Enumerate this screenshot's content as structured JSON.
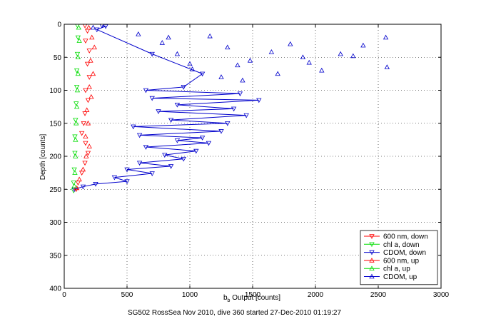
{
  "figure": {
    "caption": "SG502 RossSea Nov 2010, dive 360 started 27-Dec-2010 01:19:27"
  },
  "chart_data": {
    "type": "scatter",
    "xlabel_main": "b",
    "xlabel_sub": "b",
    "xlabel_rest": " Output [counts]",
    "ylabel": "Depth [counts]",
    "xlim": [
      0,
      3000
    ],
    "ylim": [
      0,
      400
    ],
    "y_reversed": true,
    "grid": true,
    "legend_position": "bottom-right",
    "xticks": [
      0,
      500,
      1000,
      1500,
      2000,
      2500,
      3000
    ],
    "yticks": [
      0,
      50,
      100,
      150,
      200,
      250,
      300,
      350,
      400
    ],
    "series": [
      {
        "name": "600 nm, down",
        "color": "#ff0000",
        "marker": "triangle-down",
        "line": false,
        "points": [
          [
            165,
            2
          ],
          [
            185,
            10
          ],
          [
            170,
            25
          ],
          [
            200,
            40
          ],
          [
            185,
            60
          ],
          [
            200,
            80
          ],
          [
            170,
            100
          ],
          [
            190,
            115
          ],
          [
            165,
            135
          ],
          [
            155,
            150
          ],
          [
            140,
            165
          ],
          [
            170,
            180
          ],
          [
            190,
            195
          ],
          [
            165,
            210
          ],
          [
            140,
            225
          ],
          [
            110,
            240
          ],
          [
            95,
            250
          ]
        ]
      },
      {
        "name": "chl a, down",
        "color": "#00dd00",
        "marker": "triangle-down",
        "line": false,
        "points": [
          [
            105,
            2
          ],
          [
            110,
            20
          ],
          [
            105,
            45
          ],
          [
            100,
            70
          ],
          [
            100,
            95
          ],
          [
            95,
            120
          ],
          [
            90,
            145
          ],
          [
            85,
            170
          ],
          [
            85,
            195
          ],
          [
            80,
            220
          ],
          [
            75,
            240
          ],
          [
            75,
            252
          ]
        ]
      },
      {
        "name": "CDOM, down",
        "color": "#0000cc",
        "marker": "triangle-down",
        "line": true,
        "points": [
          [
            300,
            2
          ],
          [
            330,
            3
          ],
          [
            260,
            8
          ],
          [
            700,
            45
          ],
          [
            1100,
            75
          ],
          [
            950,
            95
          ],
          [
            650,
            100
          ],
          [
            1400,
            105
          ],
          [
            700,
            112
          ],
          [
            1550,
            115
          ],
          [
            900,
            122
          ],
          [
            1350,
            128
          ],
          [
            750,
            132
          ],
          [
            1450,
            138
          ],
          [
            850,
            145
          ],
          [
            1300,
            150
          ],
          [
            550,
            155
          ],
          [
            1250,
            162
          ],
          [
            600,
            168
          ],
          [
            1100,
            172
          ],
          [
            900,
            176
          ],
          [
            1150,
            180
          ],
          [
            650,
            186
          ],
          [
            1050,
            192
          ],
          [
            800,
            198
          ],
          [
            950,
            204
          ],
          [
            600,
            210
          ],
          [
            850,
            215
          ],
          [
            500,
            220
          ],
          [
            700,
            226
          ],
          [
            400,
            232
          ],
          [
            500,
            238
          ],
          [
            250,
            242
          ],
          [
            150,
            246
          ],
          [
            80,
            250
          ]
        ]
      },
      {
        "name": "600 nm, up",
        "color": "#ff0000",
        "marker": "triangle-up",
        "line": false,
        "points": [
          [
            195,
            5
          ],
          [
            220,
            20
          ],
          [
            240,
            35
          ],
          [
            210,
            55
          ],
          [
            230,
            75
          ],
          [
            200,
            95
          ],
          [
            215,
            110
          ],
          [
            180,
            130
          ],
          [
            190,
            150
          ],
          [
            170,
            170
          ],
          [
            200,
            185
          ],
          [
            175,
            200
          ],
          [
            150,
            220
          ],
          [
            120,
            235
          ],
          [
            100,
            248
          ]
        ]
      },
      {
        "name": "chl a, up",
        "color": "#00dd00",
        "marker": "triangle-up",
        "line": false,
        "points": [
          [
            115,
            5
          ],
          [
            120,
            25
          ],
          [
            110,
            50
          ],
          [
            110,
            75
          ],
          [
            105,
            100
          ],
          [
            100,
            125
          ],
          [
            95,
            150
          ],
          [
            90,
            175
          ],
          [
            90,
            200
          ],
          [
            85,
            225
          ],
          [
            80,
            245
          ]
        ]
      },
      {
        "name": "CDOM, up",
        "color": "#0000cc",
        "marker": "triangle-up",
        "line": false,
        "points": [
          [
            230,
            5
          ],
          [
            590,
            15
          ],
          [
            780,
            28
          ],
          [
            830,
            20
          ],
          [
            900,
            45
          ],
          [
            1000,
            60
          ],
          [
            1160,
            18
          ],
          [
            1300,
            35
          ],
          [
            1480,
            55
          ],
          [
            1650,
            42
          ],
          [
            1800,
            30
          ],
          [
            1950,
            58
          ],
          [
            2050,
            70
          ],
          [
            2200,
            45
          ],
          [
            2380,
            32
          ],
          [
            2560,
            20
          ],
          [
            2570,
            65
          ],
          [
            1380,
            62
          ],
          [
            1700,
            75
          ],
          [
            1900,
            50
          ],
          [
            1420,
            85
          ],
          [
            1020,
            68
          ],
          [
            1250,
            80
          ],
          [
            2300,
            48
          ]
        ]
      }
    ]
  }
}
